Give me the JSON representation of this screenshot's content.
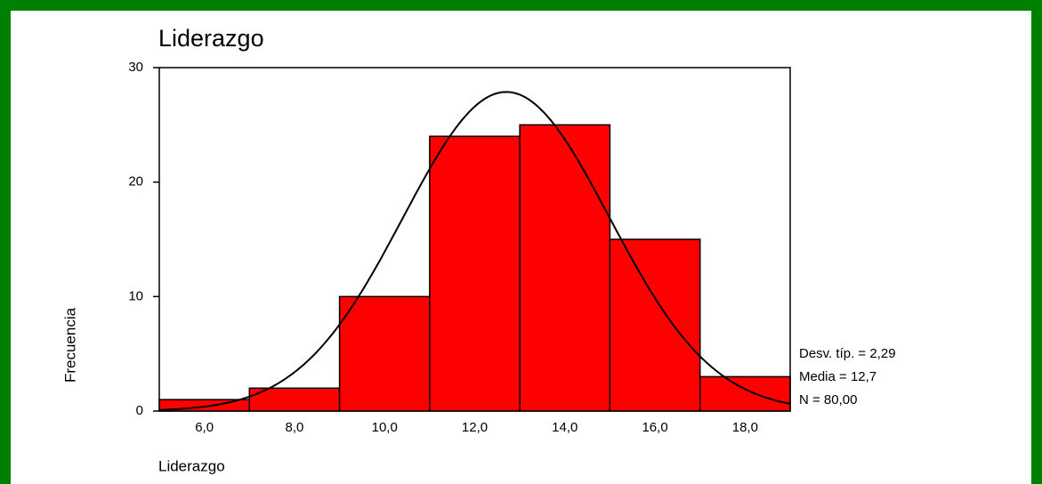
{
  "chart_data": {
    "type": "histogram",
    "title": "Liderazgo",
    "x_label": "Liderazgo",
    "y_label": "Frecuencia",
    "bins": [
      5,
      7,
      9,
      11,
      13,
      15,
      17,
      19
    ],
    "values": [
      1,
      2,
      10,
      24,
      25,
      15,
      3
    ],
    "color": "#ff0000",
    "xlim": [
      5,
      19
    ],
    "xticks": [
      {
        "value": 6,
        "label": "6,0"
      },
      {
        "value": 8,
        "label": "8,0"
      },
      {
        "value": 10,
        "label": "10,0"
      },
      {
        "value": 12,
        "label": "12,0"
      },
      {
        "value": 14,
        "label": "14,0"
      },
      {
        "value": 16,
        "label": "16,0"
      },
      {
        "value": 18,
        "label": "18,0"
      }
    ],
    "ylim": [
      0,
      30
    ],
    "yticks": [
      0,
      10,
      20,
      30
    ],
    "normal_curve": {
      "mean": 12.7,
      "sd": 2.29,
      "n": 80
    },
    "stats": [
      {
        "value": 2.29,
        "label": "Desv. típ. = 2,29"
      },
      {
        "value": 12.7,
        "label": "Media = 12,7"
      },
      {
        "value": 80,
        "label": "N = 80,00"
      }
    ]
  }
}
